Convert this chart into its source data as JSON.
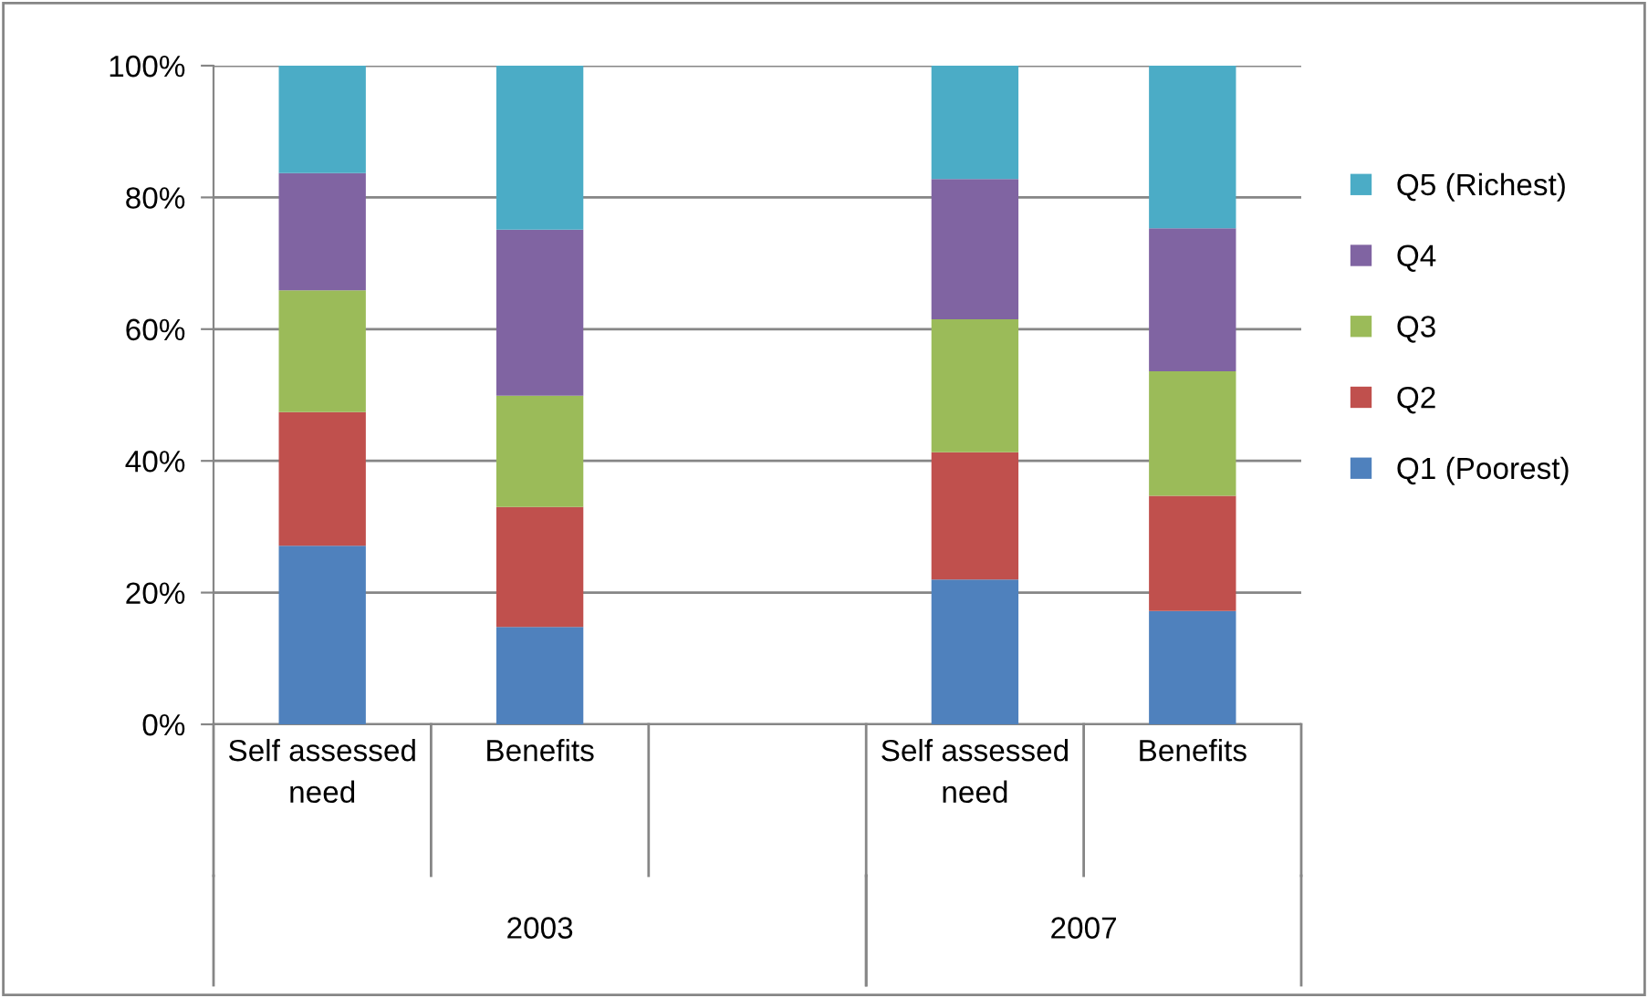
{
  "chart_data": {
    "type": "bar",
    "stacked": true,
    "categories": [
      "Self assessed need",
      "Benefits",
      null,
      "Self assessed need",
      "Benefits"
    ],
    "series": [
      {
        "name": "Q1 (Poorest)",
        "color": "#4f81bd",
        "values": [
          27.1,
          14.8,
          null,
          22.0,
          17.2
        ]
      },
      {
        "name": "Q2",
        "color": "#c0504d",
        "values": [
          20.3,
          18.2,
          null,
          19.3,
          17.5
        ]
      },
      {
        "name": "Q3",
        "color": "#9bbb59",
        "values": [
          18.5,
          16.9,
          null,
          20.2,
          18.9
        ]
      },
      {
        "name": "Q4",
        "color": "#8064a2",
        "values": [
          17.8,
          25.2,
          null,
          21.3,
          21.7
        ]
      },
      {
        "name": "Q5 (Richest)",
        "color": "#4bacc6",
        "values": [
          16.3,
          24.9,
          null,
          17.2,
          24.7
        ]
      }
    ],
    "ylim": [
      0,
      100
    ],
    "yticks": [
      {
        "value": 0,
        "label": "0%"
      },
      {
        "value": 20,
        "label": "20%"
      },
      {
        "value": 40,
        "label": "40%"
      },
      {
        "value": 60,
        "label": "60%"
      },
      {
        "value": 80,
        "label": "80%"
      },
      {
        "value": 100,
        "label": "100%"
      }
    ],
    "annotations": [
      "2003",
      "2007"
    ],
    "grid": "y",
    "legend": "right"
  }
}
